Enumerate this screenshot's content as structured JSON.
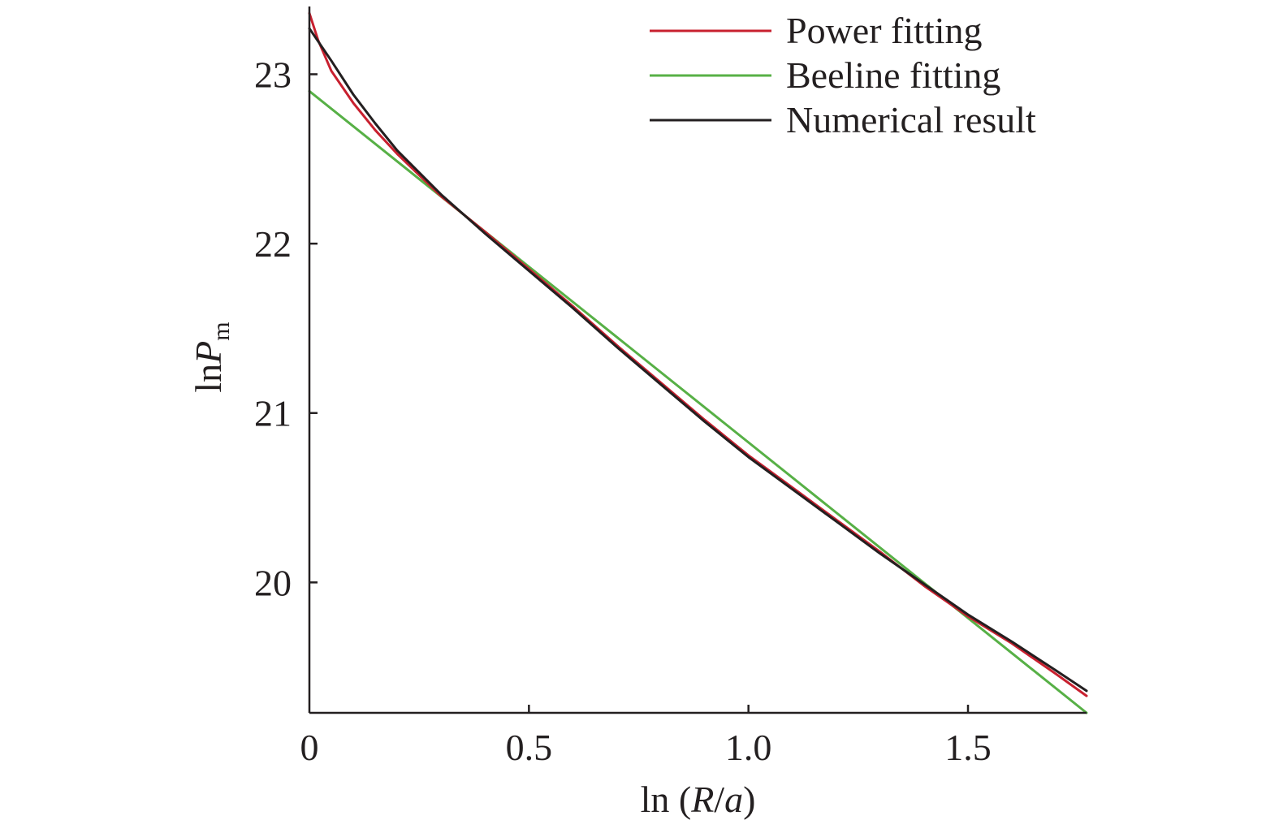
{
  "chart_data": {
    "type": "line",
    "xlabel": {
      "prefix": "ln (",
      "italic": "R",
      "middle": "/",
      "italic2": "a",
      "suffix": ")"
    },
    "ylabel": {
      "prefix": "ln",
      "italic": "P",
      "subscript": "m"
    },
    "xlim": [
      0,
      1.77
    ],
    "ylim": [
      19.23,
      23.4
    ],
    "x_ticks": [
      {
        "value": 0,
        "label": "0"
      },
      {
        "value": 0.5,
        "label": "0.5"
      },
      {
        "value": 1.0,
        "label": "1.0"
      },
      {
        "value": 1.5,
        "label": "1.5"
      }
    ],
    "y_ticks": [
      {
        "value": 20,
        "label": "20"
      },
      {
        "value": 21,
        "label": "21"
      },
      {
        "value": 22,
        "label": "22"
      },
      {
        "value": 23,
        "label": "23"
      }
    ],
    "legend_position": "top-right",
    "series": [
      {
        "name": "Power fitting",
        "color": "#c8202f",
        "x": [
          0,
          0.02,
          0.05,
          0.1,
          0.15,
          0.2,
          0.3,
          0.4,
          0.5,
          0.6,
          0.7,
          0.8,
          0.9,
          1.0,
          1.1,
          1.2,
          1.3,
          1.4,
          1.5,
          1.6,
          1.7,
          1.77
        ],
        "y": [
          23.36,
          23.2,
          23.02,
          22.83,
          22.67,
          22.53,
          22.28,
          22.07,
          21.85,
          21.63,
          21.4,
          21.18,
          20.96,
          20.75,
          20.56,
          20.37,
          20.18,
          19.98,
          19.8,
          19.64,
          19.46,
          19.33
        ]
      },
      {
        "name": "Beeline fitting",
        "color": "#57b046",
        "x": [
          0,
          1.77
        ],
        "y": [
          22.9,
          19.23
        ]
      },
      {
        "name": "Numerical result",
        "color": "#231f20",
        "x": [
          0,
          0.05,
          0.1,
          0.15,
          0.2,
          0.3,
          0.4,
          0.5,
          0.6,
          0.7,
          0.8,
          0.9,
          1.0,
          1.1,
          1.2,
          1.3,
          1.4,
          1.5,
          1.6,
          1.7,
          1.77
        ],
        "y": [
          23.27,
          23.08,
          22.88,
          22.71,
          22.55,
          22.29,
          22.06,
          21.84,
          21.62,
          21.39,
          21.17,
          20.95,
          20.74,
          20.55,
          20.36,
          20.17,
          19.99,
          19.81,
          19.65,
          19.48,
          19.36
        ]
      }
    ]
  }
}
